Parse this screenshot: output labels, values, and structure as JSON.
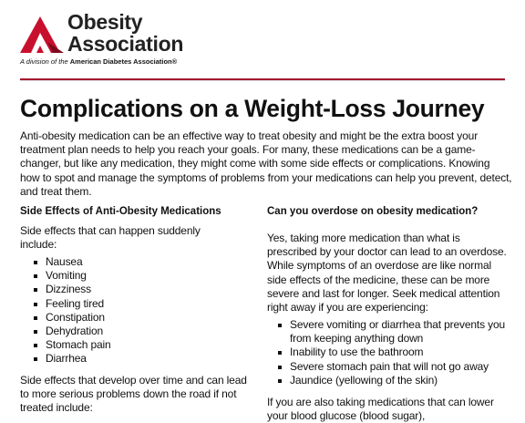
{
  "header": {
    "org_line1": "Obesity",
    "org_line2": "Association",
    "tagline_prefix": "A division of the",
    "tagline_org": "American Diabetes Association®"
  },
  "title": "Complications on a Weight-Loss Journey",
  "intro": "Anti-obesity medication can be an effective way to treat obesity and might be the extra boost your treatment plan needs to help you reach your goals. For many, these medications can be a game-changer, but like any medication, they might come with some side effects or complications. Knowing how to spot and manage the symptoms of problems from your medications can help you prevent, detect, and treat them.",
  "left": {
    "heading": "Side Effects of Anti-Obesity Medications",
    "paragraph1": "Side effects that can happen suddenly include:",
    "list": [
      "Nausea",
      "Vomiting",
      "Dizziness",
      "Feeling tired",
      "Constipation",
      "Dehydration",
      "Stomach pain",
      "Diarrhea"
    ],
    "paragraph2": "Side effects that develop over time and can lead to more serious problems down the road if not treated include:"
  },
  "right": {
    "heading": "Can you overdose on obesity medication?",
    "paragraph1": "Yes, taking more medication than what is prescribed by your doctor can lead to an overdose. While symptoms of an overdose are like normal side effects of the medicine, these can be more severe and last for longer. Seek medical attention right away if you are experiencing:",
    "list": [
      "Severe vomiting or diarrhea that prevents you from keeping anything down",
      "Inability to use the bathroom",
      "Severe stomach pain that will not go away",
      "Jaundice (yellowing of the skin)"
    ],
    "paragraph2": "If you are also taking medications that can lower your blood glucose (blood sugar),"
  }
}
